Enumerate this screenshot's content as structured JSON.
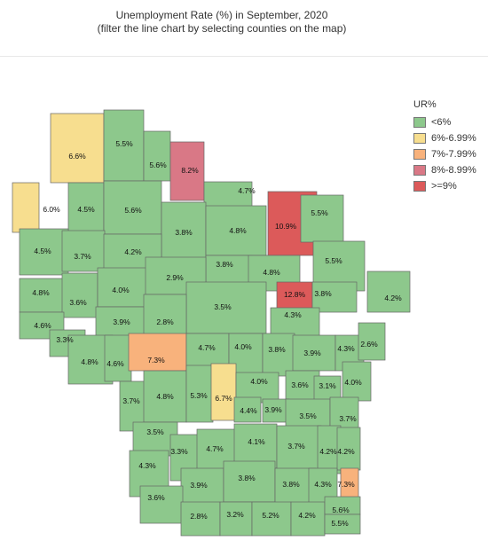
{
  "title": {
    "line1": "Unemployment Rate (%) in September, 2020",
    "line2": "(filter the line chart by selecting counties on the map)"
  },
  "legend": {
    "title": "UR%",
    "items": [
      {
        "label": "<6%",
        "color": "#8dc88c"
      },
      {
        "label": "6%-6.99%",
        "color": "#f7de8f"
      },
      {
        "label": "7%-7.99%",
        "color": "#f8b27c"
      },
      {
        "label": "8%-8.99%",
        "color": "#d97886"
      },
      {
        "label": ">=9%",
        "color": "#dc5a5a"
      }
    ]
  },
  "map": {
    "county_labels": [
      "6.6%",
      "5.5%",
      "5.6%",
      "8.2%",
      "4.7%",
      "6.0%",
      "4.5%",
      "5.6%",
      "3.8%",
      "4.8%",
      "10.9%",
      "5.5%",
      "4.5%",
      "3.7%",
      "4.2%",
      "3.8%",
      "4.8%",
      "5.5%",
      "4.8%",
      "3.6%",
      "4.0%",
      "2.9%",
      "3.5%",
      "12.8%",
      "3.8%",
      "4.2%",
      "4.6%",
      "3.9%",
      "2.8%",
      "4.3%",
      "3.3%",
      "4.8%",
      "4.6%",
      "7.3%",
      "4.7%",
      "4.0%",
      "3.8%",
      "3.9%",
      "4.3%",
      "2.6%",
      "3.7%",
      "4.8%",
      "5.3%",
      "6.7%",
      "4.0%",
      "3.6%",
      "3.1%",
      "4.0%",
      "4.4%",
      "3.9%",
      "3.5%",
      "3.7%",
      "3.5%",
      "3.3%",
      "4.7%",
      "4.1%",
      "3.7%",
      "4.2%",
      "4.2%",
      "4.3%",
      "3.9%",
      "3.8%",
      "3.8%",
      "4.3%",
      "7.3%",
      "3.6%",
      "2.8%",
      "3.2%",
      "5.2%",
      "4.2%",
      "5.6%",
      "5.5%"
    ]
  }
}
